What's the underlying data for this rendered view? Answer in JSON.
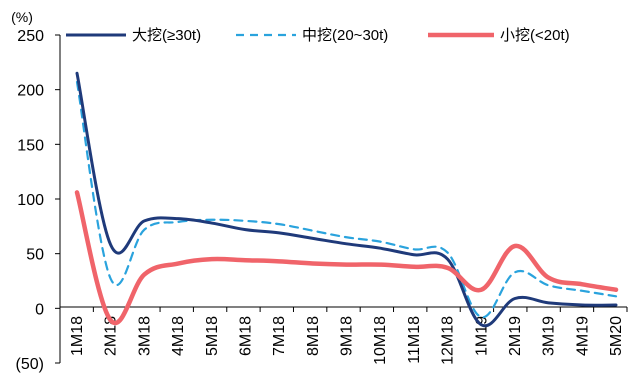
{
  "chart_data": {
    "type": "line",
    "unit_label": "(%)",
    "x": [
      "1M18",
      "2M18",
      "3M18",
      "4M18",
      "5M18",
      "6M18",
      "7M18",
      "8M18",
      "9M18",
      "10M18",
      "11M18",
      "12M18",
      "1M19",
      "2M19",
      "3M19",
      "4M19",
      "5M20"
    ],
    "y_ticks": [
      "250",
      "200",
      "150",
      "100",
      "50",
      "0",
      "(50)"
    ],
    "ylim": [
      -50,
      250
    ],
    "legend_position": "top",
    "series": [
      {
        "name": "大挖(≥30t)",
        "color": "#1f3a7a",
        "style": "solid",
        "values": [
          215,
          58,
          80,
          82,
          78,
          72,
          69,
          64,
          59,
          55,
          49,
          45,
          -15,
          9,
          5,
          3,
          3
        ]
      },
      {
        "name": "中挖(20~30t)",
        "color": "#2aa3dd",
        "style": "dashed",
        "values": [
          207,
          27,
          72,
          79,
          81,
          80,
          77,
          71,
          65,
          61,
          54,
          51,
          -8,
          33,
          21,
          16,
          11
        ]
      },
      {
        "name": "小挖(<20t)",
        "color": "#f0646a",
        "style": "solid",
        "values": [
          106,
          -11,
          31,
          41,
          45,
          44,
          43,
          41,
          40,
          40,
          38,
          37,
          17,
          57,
          28,
          22,
          17
        ]
      }
    ]
  }
}
